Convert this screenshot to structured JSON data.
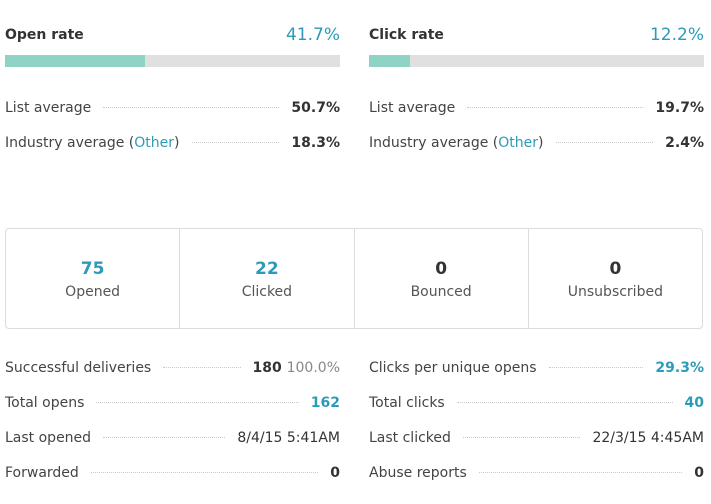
{
  "open_rate": {
    "title": "Open rate",
    "value": "41.7%",
    "fill": 0.417,
    "list_average_label": "List average",
    "list_average_value": "50.7%",
    "industry_label": "Industry average (",
    "industry_link": "Other",
    "industry_close": ")",
    "industry_value": "18.3%"
  },
  "click_rate": {
    "title": "Click rate",
    "value": "12.2%",
    "fill": 0.122,
    "list_average_label": "List average",
    "list_average_value": "19.7%",
    "industry_label": "Industry average (",
    "industry_link": "Other",
    "industry_close": ")",
    "industry_value": "2.4%"
  },
  "summary": [
    {
      "value": "75",
      "label": "Opened"
    },
    {
      "value": "22",
      "label": "Clicked"
    },
    {
      "value": "0",
      "label": "Bounced"
    },
    {
      "value": "0",
      "label": "Unsubscribed"
    }
  ],
  "details_left": [
    {
      "label": "Successful deliveries",
      "value": "180",
      "extra": "100.0%"
    },
    {
      "label": "Total opens",
      "value": "162"
    },
    {
      "label": "Last opened",
      "value": "8/4/15 5:41AM"
    },
    {
      "label": "Forwarded",
      "value": "0"
    }
  ],
  "details_right": [
    {
      "label": "Clicks per unique opens",
      "value": "29.3%"
    },
    {
      "label": "Total clicks",
      "value": "40"
    },
    {
      "label": "Last clicked",
      "value": "22/3/15 4:45AM"
    },
    {
      "label": "Abuse reports",
      "value": "0"
    }
  ],
  "colors": {
    "accent": "#2c9bb8",
    "bar_fill": "#8fd3c5",
    "bar_track": "#e0e0e0"
  }
}
